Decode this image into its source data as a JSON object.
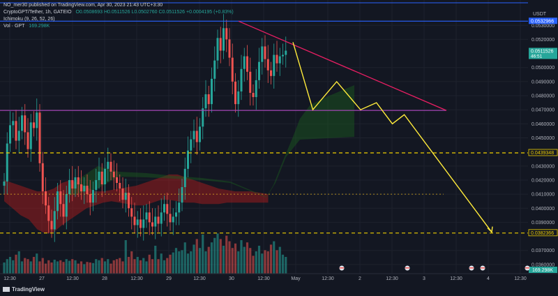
{
  "header": {
    "published_line": "NO_mer30 published on TradingView.com, Apr 30, 2023 21:43 UTC+3:30",
    "symbol_line": "CryptoGPT/Tether, 1h, GATEIO",
    "ohlc": "O0.0508693 H0.0511526 L0.0502760 C0.0511526 +0.0004195 (+0.83%)",
    "ichimoku_label": "Ichimoku (9, 26, 52, 26)",
    "vol_label": "Vol · GPT",
    "vol_value": "169.298K"
  },
  "footer": {
    "brand": "TradingView"
  },
  "colors": {
    "background": "#131722",
    "bull": "#26a69a",
    "bear": "#ef5350",
    "trendline": "#e91e63",
    "horizontal": "#ab47bc",
    "blue_line": "#2962ff",
    "dashed_support": "#f0d000",
    "projection": "#ffeb3b",
    "cloud_green": "#1b5e20",
    "cloud_red": "#b71c1c"
  },
  "chart_data": {
    "type": "candlestick",
    "ylabel": "USDT",
    "y_ticks": [
      "0.0530000",
      "0.0520000",
      "0.0500000",
      "0.0490000",
      "0.0480000",
      "0.0470000",
      "0.0460000",
      "0.0450000",
      "0.0430000",
      "0.0420000",
      "0.0410000",
      "0.0400000",
      "0.0390000",
      "0.0370000",
      "0.0360000"
    ],
    "y_tick_values": [
      0.053,
      0.052,
      0.05,
      0.049,
      0.048,
      0.047,
      0.046,
      0.045,
      0.043,
      0.042,
      0.041,
      0.04,
      0.039,
      0.037,
      0.036
    ],
    "ylim": [
      0.03535,
      0.0548
    ],
    "x_ticks": [
      "12:30",
      "27",
      "12:30",
      "28",
      "12:30",
      "29",
      "12:30",
      "30",
      "12:30",
      "May",
      "12:30",
      "2",
      "12:30",
      "3",
      "12:30",
      "4",
      "12:30"
    ],
    "price_labels": [
      {
        "value": 0.0532966,
        "text": "0.0532966",
        "kind": "blue"
      },
      {
        "value": 0.0511526,
        "text": "0.0511526",
        "sub": "46:51",
        "kind": "last"
      },
      {
        "value": 0.0439348,
        "text": "0.0439348",
        "kind": "support"
      },
      {
        "value": 0.0382366,
        "text": "0.0382366",
        "kind": "support"
      }
    ],
    "volume_label": "169.298K",
    "levels": {
      "top_blue": 0.0546,
      "resistance_blue": 0.0532966,
      "horizontal_magenta": 0.04695,
      "support_upper": 0.0439348,
      "support_lower": 0.0382366,
      "dotted_mid": 0.041
    },
    "closes": [
      0.0419,
      0.0446,
      0.0459,
      0.0462,
      0.0448,
      0.0455,
      0.0466,
      0.0454,
      0.0442,
      0.0461,
      0.0457,
      0.0468,
      0.0432,
      0.0412,
      0.0402,
      0.0391,
      0.0385,
      0.0398,
      0.0412,
      0.0403,
      0.0394,
      0.041,
      0.042,
      0.0414,
      0.0422,
      0.0417,
      0.0412,
      0.0416,
      0.041,
      0.0404,
      0.0413,
      0.042,
      0.0426,
      0.0417,
      0.0428,
      0.0433,
      0.0426,
      0.0422,
      0.0418,
      0.0414,
      0.0406,
      0.0411,
      0.04,
      0.0394,
      0.0388,
      0.0392,
      0.0386,
      0.0392,
      0.0397,
      0.039,
      0.0387,
      0.0394,
      0.0389,
      0.0397,
      0.0403,
      0.0396,
      0.039,
      0.0394,
      0.0397,
      0.0404,
      0.0415,
      0.0428,
      0.0441,
      0.0449,
      0.0455,
      0.0447,
      0.0458,
      0.0471,
      0.0481,
      0.0474,
      0.0492,
      0.0505,
      0.0521,
      0.0512,
      0.0528,
      0.052,
      0.0507,
      0.049,
      0.0474,
      0.0483,
      0.0499,
      0.0508,
      0.0497,
      0.0482,
      0.0479,
      0.0491,
      0.0504,
      0.0515,
      0.0506,
      0.0498,
      0.0494,
      0.0509,
      0.0503,
      0.0508,
      0.0509,
      0.0512
    ],
    "volumes": [
      0.2,
      0.26,
      0.3,
      0.24,
      0.34,
      0.4,
      0.22,
      0.28,
      0.26,
      0.22,
      0.3,
      0.36,
      0.22,
      0.28,
      0.18,
      0.24,
      0.2,
      0.25,
      0.22,
      0.24,
      0.21,
      0.26,
      0.23,
      0.26,
      0.24,
      0.18,
      0.22,
      0.17,
      0.21,
      0.2,
      0.19,
      0.26,
      0.24,
      0.28,
      0.22,
      0.26,
      0.18,
      0.24,
      0.26,
      0.28,
      0.22,
      0.6,
      0.3,
      0.4,
      0.26,
      0.3,
      0.24,
      0.28,
      0.22,
      0.34,
      0.26,
      0.5,
      0.26,
      0.36,
      0.24,
      0.28,
      0.34,
      0.38,
      0.46,
      0.4,
      0.42,
      0.56,
      0.36,
      0.4,
      0.52,
      0.62,
      0.46,
      0.7,
      0.4,
      0.48,
      0.56,
      0.64,
      0.72,
      0.62,
      0.5,
      0.68,
      0.58,
      0.46,
      0.54,
      0.4,
      0.6,
      0.48,
      0.56,
      0.46,
      0.32,
      0.4,
      0.5,
      0.36,
      0.42,
      0.4,
      0.52,
      0.58,
      0.42,
      0.48,
      0.34,
      0.3
    ],
    "cloud": [
      {
        "from": 0,
        "to": 70,
        "color": "red",
        "top": [
          0.042,
          0.0418,
          0.0416,
          0.0414,
          0.0412,
          0.0412,
          0.0414,
          0.0418,
          0.042,
          0.0418,
          0.0415,
          0.0412,
          0.0412,
          0.0413,
          0.0414,
          0.0415,
          0.0416,
          0.0418,
          0.042,
          0.0422,
          0.0424,
          0.0424,
          0.0422,
          0.042,
          0.0418,
          0.0416,
          0.0414,
          0.0413,
          0.0412,
          0.0412,
          0.0412,
          0.0411,
          0.041
        ],
        "bottom": [
          0.0405,
          0.04,
          0.0395,
          0.0392,
          0.0385,
          0.0382,
          0.0383,
          0.0388,
          0.0392,
          0.0396,
          0.04,
          0.0402,
          0.0404,
          0.0405,
          0.0404,
          0.0403,
          0.0402,
          0.0402,
          0.0404,
          0.0406,
          0.0406,
          0.0405,
          0.0404,
          0.0404,
          0.0403,
          0.0403,
          0.0403,
          0.0404,
          0.0404,
          0.0404,
          0.0404,
          0.0404,
          0.0404
        ]
      }
    ],
    "projection": [
      {
        "x": 0.0,
        "y": 0.0518
      },
      {
        "x": 0.1,
        "y": 0.047
      },
      {
        "x": 0.22,
        "y": 0.049
      },
      {
        "x": 0.34,
        "y": 0.047
      },
      {
        "x": 0.42,
        "y": 0.0475
      },
      {
        "x": 0.5,
        "y": 0.046
      },
      {
        "x": 0.56,
        "y": 0.04665
      },
      {
        "x": 1.0,
        "y": 0.0383
      }
    ]
  }
}
